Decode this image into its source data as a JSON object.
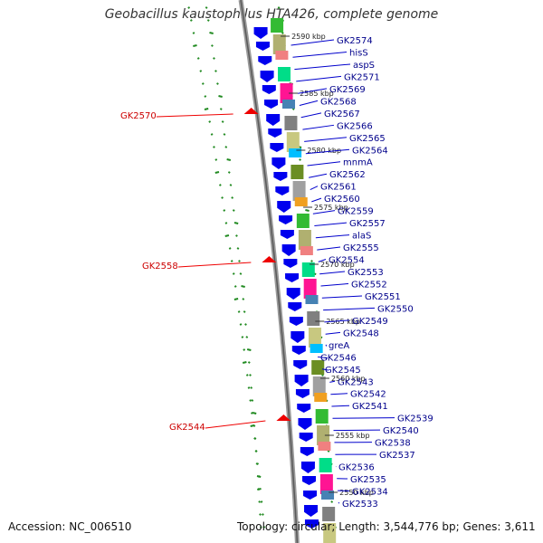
{
  "title": "Geobacillus kaustophilus HTA426, complete genome",
  "accession": "Accession: NC_006510",
  "summary": "Topology: circular; Length: 3,544,776 bp; Genes: 3,611",
  "colors": {
    "backbone": "#7a7a7a",
    "forward_gene": "#0000ee",
    "reverse_gene": "#ee0000",
    "gc_track": "#228b22",
    "label_line": "#0000cc"
  },
  "kbp_ticks": [
    "2590 kbp",
    "2585 kbp",
    "2580 kbp",
    "2575 kbp",
    "2570 kbp",
    "2565 kbp",
    "2560 kbp",
    "2555 kbp",
    "2550 kbp"
  ],
  "gene_labels": [
    "GK2574",
    "hisS",
    "aspS",
    "GK2571",
    "GK2569",
    "GK2568",
    "GK2567",
    "GK2566",
    "GK2565",
    "GK2564",
    "mnmA",
    "GK2562",
    "GK2561",
    "GK2560",
    "GK2559",
    "GK2557",
    "alaS",
    "GK2555",
    "GK2554",
    "GK2553",
    "GK2552",
    "GK2551",
    "GK2550",
    "GK2549",
    "GK2548",
    "greA",
    "GK2546",
    "GK2545",
    "GK2543",
    "GK2542",
    "GK2541",
    "GK2539",
    "GK2540",
    "GK2538",
    "GK2537",
    "GK2536",
    "GK2535",
    "GK2534",
    "GK2533"
  ],
  "reverse_labels": [
    "GK2570",
    "GK2558",
    "GK2544"
  ],
  "cog_colors": [
    "#f0a020",
    "#33bb33",
    "#b0b070",
    "#f08080",
    "#00dd88",
    "#ff1493",
    "#4682b4",
    "#808080",
    "#c8c880",
    "#00bfff",
    "#6b8e23",
    "#a0a0a0"
  ]
}
